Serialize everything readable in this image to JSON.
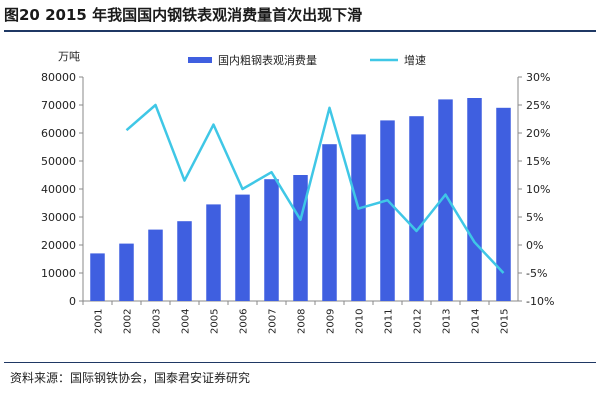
{
  "title": "图20  2015 年我国国内钢铁表观消费量首次出现下滑",
  "source": "资料来源：国际钢铁协会，国泰君安证券研究",
  "chart_data": {
    "type": "bar",
    "categories": [
      "2001",
      "2002",
      "2003",
      "2004",
      "2005",
      "2006",
      "2007",
      "2008",
      "2009",
      "2010",
      "2011",
      "2012",
      "2013",
      "2014",
      "2015"
    ],
    "series": [
      {
        "name": "国内粗钢表观消费量",
        "type": "bar",
        "axis": "left",
        "color": "#3f5fe0",
        "values": [
          17000,
          20500,
          25500,
          28500,
          34500,
          38000,
          43500,
          45000,
          56000,
          59500,
          64500,
          66000,
          72000,
          72500,
          69000
        ]
      },
      {
        "name": "增速",
        "type": "line",
        "axis": "right",
        "color": "#3fc7e6",
        "values": [
          null,
          20.5,
          25.0,
          11.5,
          21.5,
          10.0,
          13.0,
          4.5,
          24.5,
          6.5,
          8.0,
          2.5,
          9.0,
          0.5,
          -5.0
        ]
      }
    ],
    "yunit": "万吨",
    "ylim": [
      0,
      80000
    ],
    "yticks": [
      "0",
      "10000",
      "20000",
      "30000",
      "40000",
      "50000",
      "60000",
      "70000",
      "80000"
    ],
    "y2lim": [
      -10,
      30
    ],
    "y2ticks": [
      "-10%",
      "-5%",
      "0%",
      "5%",
      "10%",
      "15%",
      "20%",
      "25%",
      "30%"
    ],
    "legend": "top-center"
  }
}
